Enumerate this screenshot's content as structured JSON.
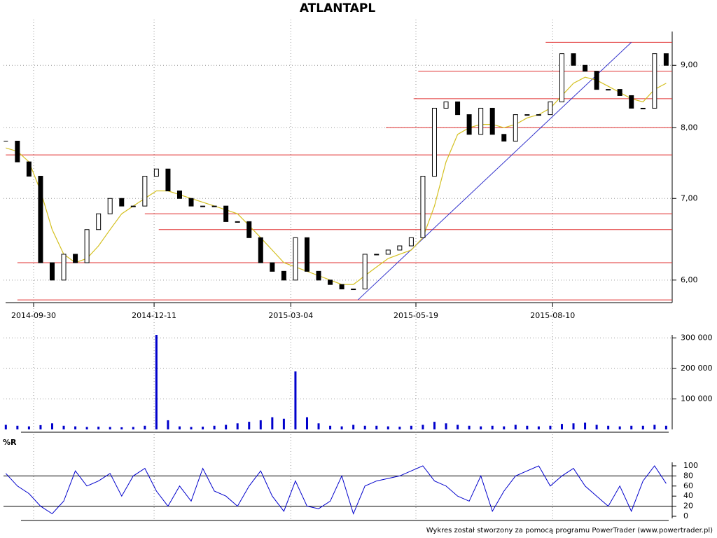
{
  "chart_data": [
    {
      "type": "candlestick",
      "title": "ATLANTAPL",
      "log_scale": true,
      "grid": true,
      "x": [
        "2014-09-12",
        "2014-09-19",
        "2014-09-26",
        "2014-10-03",
        "2014-10-10",
        "2014-10-17",
        "2014-10-24",
        "2014-10-31",
        "2014-11-07",
        "2014-11-14",
        "2014-11-21",
        "2014-11-28",
        "2014-12-05",
        "2014-12-12",
        "2014-12-19",
        "2014-12-26",
        "2015-01-02",
        "2015-01-09",
        "2015-01-16",
        "2015-01-23",
        "2015-01-30",
        "2015-02-06",
        "2015-02-13",
        "2015-02-20",
        "2015-02-27",
        "2015-03-06",
        "2015-03-13",
        "2015-03-20",
        "2015-03-27",
        "2015-04-03",
        "2015-04-10",
        "2015-04-17",
        "2015-04-24",
        "2015-05-01",
        "2015-05-08",
        "2015-05-15",
        "2015-05-22",
        "2015-05-29",
        "2015-06-05",
        "2015-06-12",
        "2015-06-19",
        "2015-06-26",
        "2015-07-03",
        "2015-07-10",
        "2015-07-17",
        "2015-07-24",
        "2015-07-31",
        "2015-08-07",
        "2015-08-14",
        "2015-08-21",
        "2015-08-28",
        "2015-09-04",
        "2015-09-11",
        "2015-09-18",
        "2015-09-25",
        "2015-10-02",
        "2015-10-09",
        "2015-10-16"
      ],
      "values": [
        7.8,
        7.5,
        7.3,
        6.2,
        6.0,
        6.3,
        6.2,
        6.6,
        6.8,
        7.0,
        6.9,
        6.9,
        7.3,
        7.4,
        7.1,
        7.0,
        6.9,
        6.9,
        6.9,
        6.7,
        6.7,
        6.5,
        6.2,
        6.1,
        6.0,
        6.5,
        6.1,
        6.0,
        5.95,
        5.9,
        5.9,
        6.3,
        6.3,
        6.35,
        6.4,
        6.5,
        7.3,
        8.3,
        8.4,
        8.2,
        7.9,
        8.3,
        7.9,
        7.8,
        8.2,
        8.2,
        8.2,
        8.4,
        9.2,
        9.0,
        8.9,
        8.6,
        8.6,
        8.5,
        8.3,
        8.3,
        9.2,
        9.0
      ],
      "moving_average": [
        7.7,
        7.65,
        7.5,
        7.1,
        6.6,
        6.3,
        6.2,
        6.25,
        6.4,
        6.6,
        6.8,
        6.9,
        7.0,
        7.1,
        7.1,
        7.05,
        7.0,
        6.95,
        6.9,
        6.85,
        6.8,
        6.65,
        6.5,
        6.35,
        6.2,
        6.15,
        6.1,
        6.05,
        6.0,
        5.95,
        5.95,
        6.05,
        6.15,
        6.25,
        6.3,
        6.35,
        6.5,
        6.9,
        7.5,
        7.9,
        8.0,
        8.05,
        8.05,
        8.0,
        8.05,
        8.15,
        8.2,
        8.3,
        8.5,
        8.7,
        8.8,
        8.75,
        8.65,
        8.55,
        8.45,
        8.4,
        8.6,
        8.7
      ],
      "levels": [
        {
          "value": 9.4,
          "from": "2015-08-05"
        },
        {
          "value": 8.9,
          "from": "2015-05-20"
        },
        {
          "value": 8.45,
          "from": "2015-05-18"
        },
        {
          "value": 8.0,
          "from": "2015-04-30"
        },
        {
          "value": 7.6,
          "from": "2014-09-12"
        },
        {
          "value": 6.8,
          "from": "2014-12-05"
        },
        {
          "value": 6.6,
          "from": "2014-12-15"
        },
        {
          "value": 6.2,
          "from": "2014-09-19"
        },
        {
          "value": 5.78,
          "from": "2014-09-19"
        }
      ],
      "trendline": {
        "x": [
          "2015-04-14",
          "2015-09-25"
        ],
        "values": [
          5.78,
          9.4
        ]
      },
      "xlim": [
        "2014-09-11",
        "2015-10-20"
      ],
      "xticks": [
        "2014-09-30",
        "2014-12-11",
        "2015-03-04",
        "2015-05-19",
        "2015-08-10"
      ],
      "ylim": [
        5.75,
        9.85
      ],
      "yticks": [
        {
          "value": 6,
          "label": "6,00"
        },
        {
          "value": 7,
          "label": "7,00"
        },
        {
          "value": 8,
          "label": "8,00"
        },
        {
          "value": 9,
          "label": "9,00"
        }
      ]
    },
    {
      "type": "bar",
      "color": "#0000cc",
      "values": [
        15000,
        12000,
        10000,
        14000,
        20000,
        12000,
        10000,
        8000,
        9000,
        8000,
        7000,
        8000,
        12000,
        310000,
        30000,
        10000,
        8000,
        9000,
        12000,
        15000,
        20000,
        25000,
        30000,
        40000,
        35000,
        190000,
        40000,
        20000,
        12000,
        10000,
        15000,
        12000,
        12000,
        10000,
        9000,
        12000,
        15000,
        25000,
        20000,
        15000,
        12000,
        10000,
        12000,
        10000,
        15000,
        12000,
        10000,
        12000,
        18000,
        20000,
        22000,
        15000,
        12000,
        10000,
        12000,
        12000,
        15000,
        12000
      ],
      "ylim": [
        0,
        310000
      ],
      "yticks": [
        {
          "value": 100000,
          "label": "100 000"
        },
        {
          "value": 200000,
          "label": "200 000"
        },
        {
          "value": 300000,
          "label": "300 000"
        }
      ]
    },
    {
      "type": "line",
      "title": "%R",
      "color": "#0000cc",
      "values": [
        85,
        60,
        45,
        20,
        5,
        30,
        90,
        60,
        70,
        85,
        40,
        80,
        95,
        50,
        20,
        60,
        30,
        95,
        50,
        40,
        20,
        60,
        90,
        40,
        10,
        70,
        20,
        15,
        30,
        80,
        5,
        60,
        70,
        75,
        80,
        90,
        100,
        70,
        60,
        40,
        30,
        80,
        10,
        50,
        80,
        90,
        100,
        60,
        80,
        95,
        60,
        40,
        20,
        60,
        10,
        70,
        100,
        65
      ],
      "reference_lines": [
        20,
        80
      ],
      "ylim": [
        0,
        100
      ],
      "yticks": [
        0,
        20,
        40,
        60,
        80,
        100
      ]
    }
  ],
  "footer": "Wykres został stworzony za pomocą programu PowerTrader (www.powertrader.pl)"
}
